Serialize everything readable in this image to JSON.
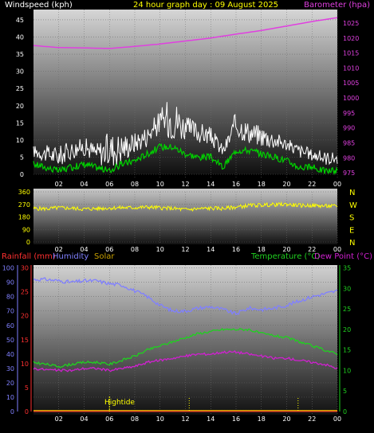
{
  "header": {
    "left": "Windspeed (kph)",
    "center": "24 hour graph day : 09 August 2025",
    "right": "Barometer (hpa)"
  },
  "colors": {
    "windspeed": "#ffffff",
    "gust": "#ffffff",
    "avg_wind": "#00d000",
    "barometer": "#e040e0",
    "direction": "#ffff00",
    "humidity": "#8080ff",
    "temperature": "#20d020",
    "dewpoint": "#d020d0",
    "rainfall": "#ff3030",
    "solar": "#c8a000",
    "hightide": "#ffff00"
  },
  "chart_data": [
    {
      "type": "line",
      "title": "24 hour graph day : 09 August 2025",
      "ylabel_left": "Windspeed (kph)",
      "ylabel_right": "Barometer (hpa)",
      "x_ticks": [
        "02",
        "04",
        "06",
        "08",
        "10",
        "12",
        "14",
        "16",
        "18",
        "20",
        "22",
        "00"
      ],
      "y_left_ticks": [
        0,
        5,
        10,
        15,
        20,
        25,
        30,
        35,
        40,
        45
      ],
      "y_left_range": [
        0,
        48
      ],
      "y_right_ticks": [
        975,
        980,
        985,
        990,
        995,
        1000,
        1005,
        1010,
        1015,
        1020,
        1025
      ],
      "y_right_range": [
        974.5,
        1029.5
      ],
      "x_range_hours": [
        0,
        24
      ],
      "series": [
        {
          "name": "Windspeed (kph)",
          "hours": [
            0,
            1,
            2,
            3,
            4,
            5,
            6,
            7,
            8,
            9,
            10,
            11,
            12,
            13,
            14,
            15,
            16,
            17,
            18,
            19,
            20,
            21,
            22,
            23,
            24
          ],
          "values": [
            6,
            5,
            4,
            6,
            7,
            5,
            5,
            6,
            8,
            10,
            14,
            14,
            12,
            11,
            10,
            6,
            13,
            11,
            10,
            9,
            8,
            6,
            5,
            4,
            4
          ]
        },
        {
          "name": "Gust (kph)",
          "hours": [
            0,
            2,
            4,
            5,
            6,
            8,
            9,
            10,
            11,
            12,
            13,
            14,
            15,
            16,
            17,
            18,
            19,
            20,
            22,
            24
          ],
          "values": [
            10,
            11,
            13,
            12,
            17,
            15,
            17,
            22,
            29,
            20,
            18,
            16,
            10,
            22,
            18,
            17,
            15,
            12,
            9,
            8
          ]
        },
        {
          "name": "Average wind (kph)",
          "hours": [
            0,
            1,
            2,
            3,
            4,
            5,
            6,
            7,
            8,
            9,
            10,
            11,
            12,
            13,
            14,
            15,
            16,
            17,
            18,
            19,
            20,
            21,
            22,
            23,
            24
          ],
          "values": [
            3,
            2,
            1,
            2,
            3,
            2,
            1,
            3,
            4,
            6,
            8,
            8,
            6,
            5,
            5,
            2,
            7,
            7,
            6,
            5,
            4,
            2,
            2,
            1,
            1
          ]
        },
        {
          "name": "Barometer (hpa)",
          "hours": [
            0,
            2,
            4,
            6,
            8,
            10,
            12,
            14,
            16,
            18,
            20,
            22,
            24
          ],
          "values": [
            1017.5,
            1016.8,
            1016.7,
            1016.5,
            1017.2,
            1018.0,
            1019.0,
            1020.0,
            1021.3,
            1022.5,
            1024.0,
            1025.5,
            1026.8
          ]
        }
      ]
    },
    {
      "type": "line",
      "ylabel_right_letters": [
        "N",
        "W",
        "S",
        "E",
        "N"
      ],
      "x_ticks": [
        "02",
        "04",
        "06",
        "08",
        "10",
        "12",
        "14",
        "16",
        "18",
        "20",
        "22",
        "00"
      ],
      "y_ticks": [
        0,
        90,
        180,
        270,
        360
      ],
      "y_range": [
        0,
        360
      ],
      "x_range_hours": [
        0,
        24
      ],
      "series": [
        {
          "name": "Wind direction",
          "hours": [
            0,
            1,
            2,
            3,
            4,
            5,
            6,
            7,
            8,
            9,
            10,
            11,
            12,
            13,
            14,
            15,
            16,
            17,
            18,
            19,
            20,
            21,
            22,
            23,
            24
          ],
          "values": [
            240,
            238,
            245,
            242,
            236,
            240,
            244,
            246,
            246,
            250,
            245,
            240,
            232,
            238,
            242,
            240,
            250,
            262,
            265,
            268,
            270,
            262,
            262,
            258,
            256
          ]
        }
      ]
    },
    {
      "type": "line",
      "labels": {
        "rainfall": "Rainfall (mm)",
        "humidity": "Humidity",
        "solar": "Solar",
        "temperature": "Temperature (°C)",
        "dewpoint": "Dew Point (°C)"
      },
      "annotation": "Hightide",
      "hightide_hours": [
        6
      ],
      "x_ticks": [
        "02",
        "04",
        "06",
        "08",
        "10",
        "12",
        "14",
        "16",
        "18",
        "20",
        "22",
        "00"
      ],
      "y_humidity_ticks": [
        0,
        10,
        20,
        30,
        40,
        50,
        60,
        70,
        80,
        90,
        100
      ],
      "y_rain_ticks": [
        0,
        5,
        10,
        15,
        20,
        25,
        30
      ],
      "y_temp_ticks": [
        0,
        5,
        10,
        15,
        20,
        25,
        30,
        35
      ],
      "y_humidity_range": [
        0,
        102
      ],
      "y_temp_range": [
        0,
        35.7
      ],
      "x_range_hours": [
        0,
        24
      ],
      "series": [
        {
          "name": "Humidity",
          "hours": [
            0,
            1,
            2,
            3,
            4,
            5,
            6,
            7,
            8,
            9,
            10,
            11,
            12,
            13,
            14,
            15,
            16,
            17,
            18,
            19,
            20,
            21,
            22,
            23,
            24
          ],
          "values": [
            92,
            92,
            91,
            90,
            91,
            91,
            89,
            88,
            84,
            80,
            74,
            70,
            70,
            72,
            73,
            71,
            68,
            72,
            71,
            72,
            74,
            77,
            80,
            82,
            84
          ]
        },
        {
          "name": "Temperature (°C)",
          "hours": [
            0,
            1,
            2,
            3,
            4,
            5,
            6,
            7,
            8,
            9,
            10,
            11,
            12,
            13,
            14,
            15,
            16,
            17,
            18,
            19,
            20,
            21,
            22,
            23,
            24
          ],
          "values": [
            12,
            11.5,
            11,
            11.5,
            12,
            12,
            11.5,
            12.5,
            13.5,
            15,
            16,
            17,
            18,
            19,
            19.5,
            20,
            20,
            20,
            19,
            18.5,
            18,
            17,
            16,
            15,
            14
          ]
        },
        {
          "name": "Dew Point (°C)",
          "hours": [
            0,
            1,
            2,
            3,
            4,
            5,
            6,
            7,
            8,
            9,
            10,
            11,
            12,
            13,
            14,
            15,
            16,
            17,
            18,
            19,
            20,
            21,
            22,
            23,
            24
          ],
          "values": [
            10.5,
            10.2,
            10,
            10,
            10.5,
            10.5,
            10,
            10.5,
            11,
            12,
            12.5,
            13,
            13.5,
            14,
            14,
            14.5,
            14.5,
            14,
            13.5,
            13,
            13,
            12.5,
            12,
            11.5,
            10.5
          ]
        },
        {
          "name": "Rainfall (mm)",
          "hours": [
            0,
            24
          ],
          "values": [
            0,
            0
          ]
        },
        {
          "name": "Solar",
          "hours": [
            0,
            24
          ],
          "values": [
            0,
            0
          ]
        }
      ]
    }
  ]
}
